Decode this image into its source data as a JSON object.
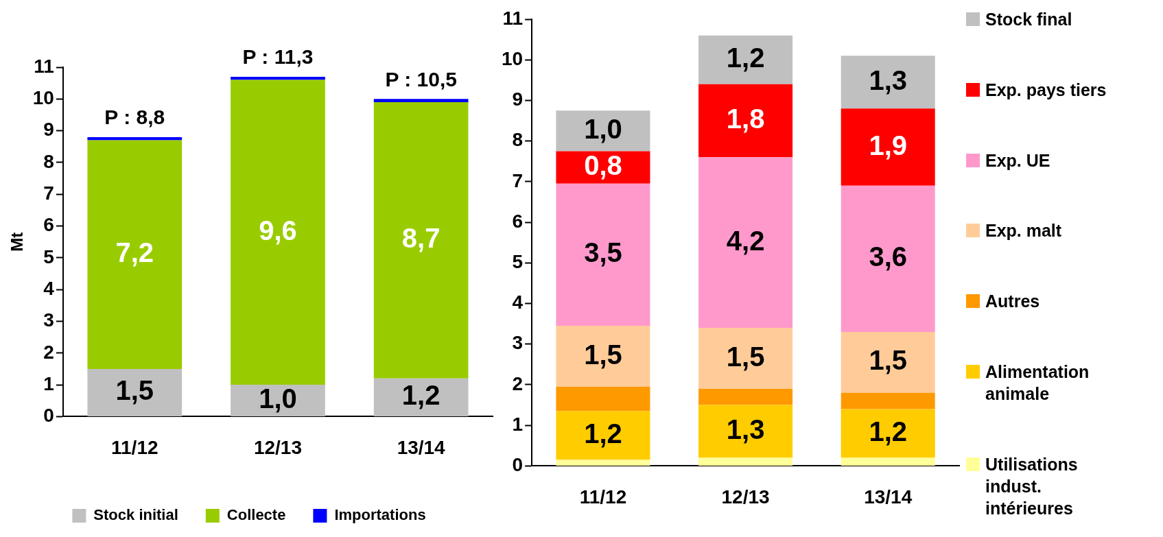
{
  "chart_data": [
    {
      "type": "bar",
      "stacked": true,
      "categories": [
        "11/12",
        "12/13",
        "13/14"
      ],
      "ylabel": "Mt",
      "ylim": [
        0,
        11
      ],
      "yticks": [
        0,
        1,
        2,
        3,
        4,
        5,
        6,
        7,
        8,
        9,
        10,
        11
      ],
      "grid": false,
      "legend": "bottom",
      "series": [
        {
          "name": "Stock initial",
          "color": "#c0c0c0",
          "values": [
            1.5,
            1.0,
            1.2
          ],
          "value_labels": [
            "1,5",
            "1,0",
            "1,2"
          ]
        },
        {
          "name": "Collecte",
          "color": "#99cc00",
          "values": [
            7.2,
            9.6,
            8.7
          ],
          "value_labels": [
            "7,2",
            "9,6",
            "8,7"
          ]
        },
        {
          "name": "Importations",
          "color": "#0000ff",
          "values": [
            0.1,
            0.1,
            0.1
          ]
        }
      ],
      "annotations": [
        {
          "text": "P : 8,8",
          "x": "11/12",
          "y": 8.8
        },
        {
          "text": "P : 11,3",
          "x": "12/13",
          "y": 10.7
        },
        {
          "text": "P : 10,5",
          "x": "13/14",
          "y": 10.0
        }
      ]
    },
    {
      "type": "bar",
      "stacked": true,
      "categories": [
        "11/12",
        "12/13",
        "13/14"
      ],
      "ylim": [
        0,
        11
      ],
      "yticks": [
        0,
        1,
        2,
        3,
        4,
        5,
        6,
        7,
        8,
        9,
        10,
        11
      ],
      "grid": false,
      "legend": "right",
      "series": [
        {
          "name": "Utilisations indust. intérieures",
          "color": "#ffff99",
          "values": [
            0.15,
            0.2,
            0.2
          ]
        },
        {
          "name": "Alimentation animale",
          "color": "#ffcc00",
          "values": [
            1.2,
            1.3,
            1.2
          ],
          "value_labels": [
            "1,2",
            "1,3",
            "1,2"
          ]
        },
        {
          "name": "Autres",
          "color": "#ff9900",
          "values": [
            0.6,
            0.4,
            0.4
          ]
        },
        {
          "name": "Exp. malt",
          "color": "#ffcc99",
          "values": [
            1.5,
            1.5,
            1.5
          ],
          "value_labels": [
            "1,5",
            "1,5",
            "1,5"
          ]
        },
        {
          "name": "Exp. UE",
          "color": "#ff99cc",
          "values": [
            3.5,
            4.2,
            3.6
          ],
          "value_labels": [
            "3,5",
            "4,2",
            "3,6"
          ]
        },
        {
          "name": "Exp. pays tiers",
          "color": "#ff0000",
          "values": [
            0.8,
            1.8,
            1.9
          ],
          "value_labels": [
            "0,8",
            "1,8",
            "1,9"
          ]
        },
        {
          "name": "Stock final",
          "color": "#c0c0c0",
          "values": [
            1.0,
            1.2,
            1.3
          ],
          "value_labels": [
            "1,0",
            "1,2",
            "1,3"
          ]
        }
      ]
    }
  ]
}
